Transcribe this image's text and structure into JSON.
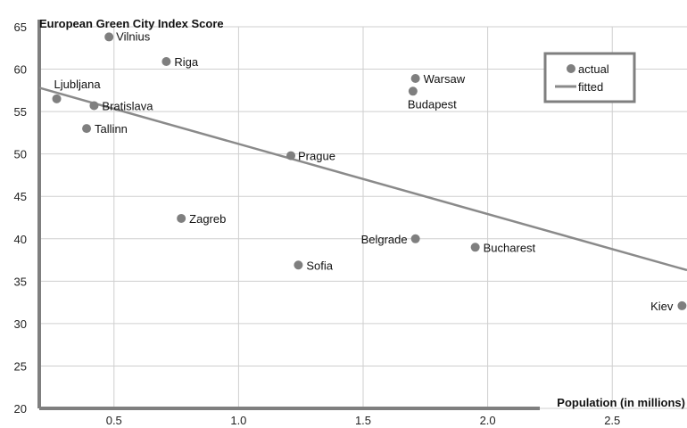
{
  "chart_data": {
    "type": "scatter",
    "ylabel": "European Green City Index Score",
    "xlabel": "Population (in millions)",
    "xlim": [
      0.2,
      2.8
    ],
    "ylim": [
      20,
      65
    ],
    "x_ticks": [
      "0.5",
      "1.0",
      "1.5",
      "2.0",
      "2.5"
    ],
    "x_tick_values": [
      0.5,
      1.0,
      1.5,
      2.0,
      2.5
    ],
    "y_ticks": [
      "20",
      "25",
      "30",
      "35",
      "40",
      "45",
      "50",
      "55",
      "60",
      "65"
    ],
    "y_tick_values": [
      20,
      25,
      30,
      35,
      40,
      45,
      50,
      55,
      60,
      65
    ],
    "grid": true,
    "legend_position": "top-right",
    "legend": {
      "actual": "actual",
      "fitted": "fitted"
    },
    "colors": {
      "points": "#7f7f7f",
      "line": "#8a8a8a",
      "axes": "#7f7f7f",
      "grid": "#cfcfcf",
      "legend_border": "#7f7f7f"
    },
    "points": [
      {
        "city": "Vilnius",
        "x": 0.48,
        "y": 63.8
      },
      {
        "city": "Riga",
        "x": 0.71,
        "y": 60.9
      },
      {
        "city": "Ljubljana",
        "x": 0.27,
        "y": 56.5
      },
      {
        "city": "Bratislava",
        "x": 0.42,
        "y": 55.7
      },
      {
        "city": "Tallinn",
        "x": 0.39,
        "y": 53.0
      },
      {
        "city": "Warsaw",
        "x": 1.71,
        "y": 58.9
      },
      {
        "city": "Budapest",
        "x": 1.7,
        "y": 57.4
      },
      {
        "city": "Prague",
        "x": 1.21,
        "y": 49.8
      },
      {
        "city": "Zagreb",
        "x": 0.77,
        "y": 42.4
      },
      {
        "city": "Belgrade",
        "x": 1.71,
        "y": 40.0
      },
      {
        "city": "Bucharest",
        "x": 1.95,
        "y": 39.0
      },
      {
        "city": "Sofia",
        "x": 1.24,
        "y": 36.9
      },
      {
        "city": "Kiev",
        "x": 2.78,
        "y": 32.1
      }
    ],
    "fitted_line": {
      "x": [
        0.2,
        2.8
      ],
      "y": [
        57.8,
        36.3
      ]
    }
  }
}
